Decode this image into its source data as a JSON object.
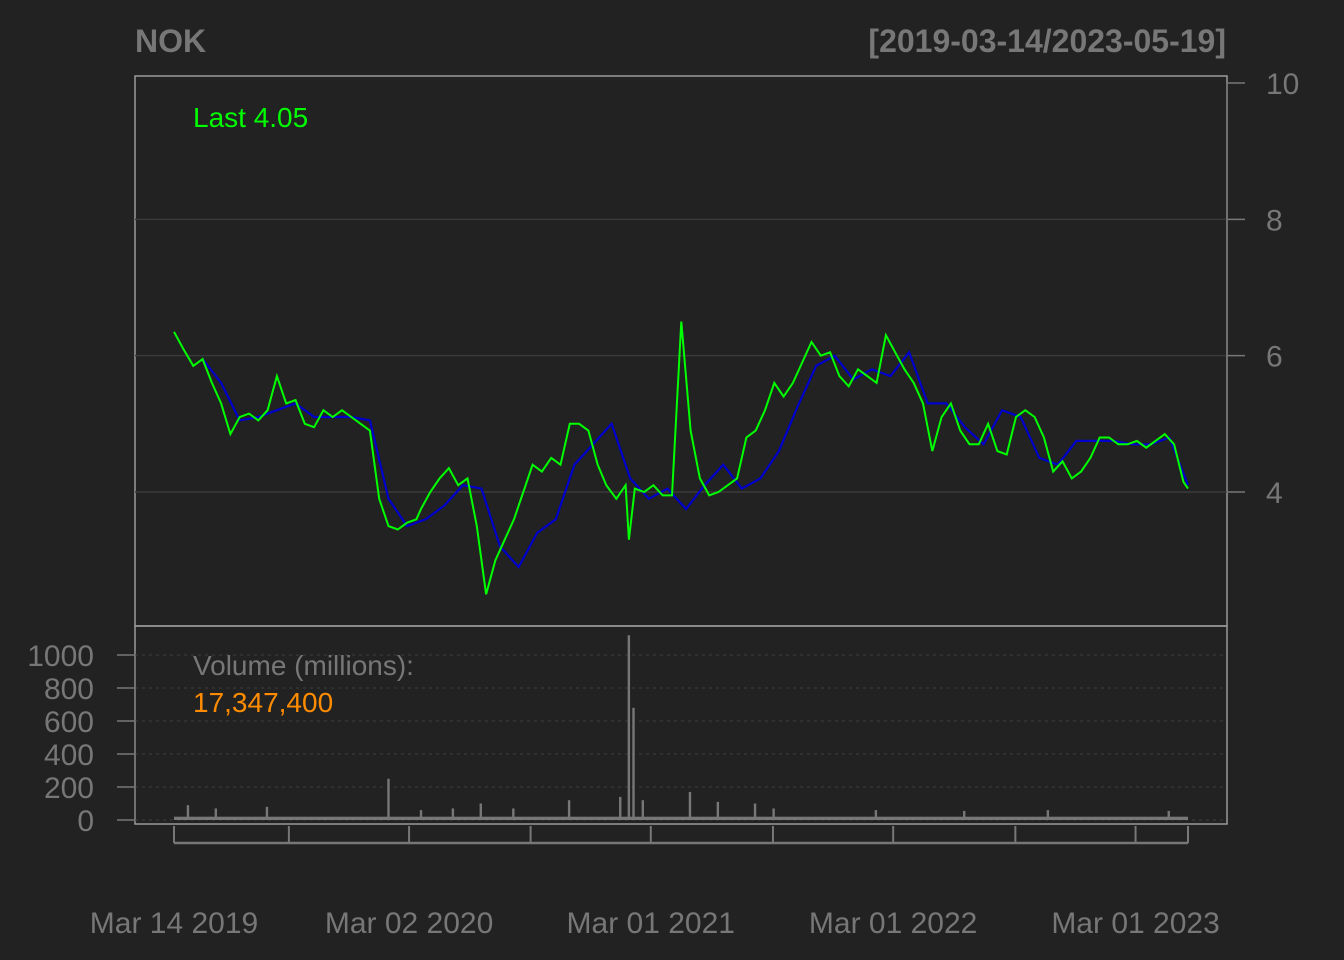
{
  "header": {
    "symbol": "NOK",
    "date_range": "[2019-03-14/2023-05-19]"
  },
  "price_panel": {
    "last_label": "Last 4.05",
    "last_color": "#00ff00"
  },
  "volume_panel": {
    "label": "Volume (millions):",
    "last_value": "17,347,400",
    "value_color": "#ff8c00"
  },
  "colors": {
    "background": "#222222",
    "text": "#777777",
    "frame": "#999999",
    "grid": "#3a3a3a",
    "price_line": "#00ff00",
    "moving_average": "#0000cc",
    "volume_bars": "#777777"
  },
  "chart_data": [
    {
      "type": "line",
      "title": "NOK",
      "subtitle": "[2019-03-14/2023-05-19]",
      "ylim": [
        2,
        10
      ],
      "yticks": [
        4,
        6,
        8,
        10
      ],
      "grid": true,
      "series": [
        {
          "values_key": "price",
          "x": [
            "2019-03-14",
            "2019-03-28",
            "2019-04-12",
            "2019-04-26",
            "2019-05-10",
            "2019-05-24",
            "2019-06-07",
            "2019-06-21",
            "2019-07-05",
            "2019-07-19",
            "2019-08-02",
            "2019-08-16",
            "2019-08-30",
            "2019-09-13",
            "2019-09-27",
            "2019-10-11",
            "2019-10-25",
            "2019-11-08",
            "2019-11-22",
            "2019-12-06",
            "2019-12-20",
            "2020-01-03",
            "2020-01-17",
            "2020-01-31",
            "2020-02-14",
            "2020-02-28",
            "2020-03-13",
            "2020-03-20",
            "2020-04-03",
            "2020-04-17",
            "2020-05-01",
            "2020-05-15",
            "2020-05-29",
            "2020-06-12",
            "2020-06-26",
            "2020-07-10",
            "2020-07-24",
            "2020-08-07",
            "2020-08-21",
            "2020-09-04",
            "2020-09-18",
            "2020-10-02",
            "2020-10-16",
            "2020-10-30",
            "2020-11-13",
            "2020-11-27",
            "2020-12-11",
            "2020-12-24",
            "2021-01-08",
            "2021-01-22",
            "2021-01-27",
            "2021-02-05",
            "2021-02-19",
            "2021-03-05",
            "2021-03-19",
            "2021-04-02",
            "2021-04-16",
            "2021-04-30",
            "2021-05-14",
            "2021-05-28",
            "2021-06-11",
            "2021-06-25",
            "2021-07-09",
            "2021-07-23",
            "2021-08-06",
            "2021-08-20",
            "2021-09-03",
            "2021-09-17",
            "2021-10-01",
            "2021-10-15",
            "2021-10-29",
            "2021-11-12",
            "2021-11-26",
            "2021-12-10",
            "2021-12-24",
            "2022-01-07",
            "2022-01-21",
            "2022-02-04",
            "2022-02-18",
            "2022-03-04",
            "2022-03-18",
            "2022-04-01",
            "2022-04-15",
            "2022-04-29",
            "2022-05-13",
            "2022-05-27",
            "2022-06-10",
            "2022-06-24",
            "2022-07-08",
            "2022-07-22",
            "2022-08-05",
            "2022-08-19",
            "2022-09-02",
            "2022-09-16",
            "2022-09-30",
            "2022-10-14",
            "2022-10-28",
            "2022-11-11",
            "2022-11-25",
            "2022-12-09",
            "2022-12-23",
            "2023-01-06",
            "2023-01-20",
            "2023-02-03",
            "2023-02-17",
            "2023-03-03",
            "2023-03-17",
            "2023-03-31",
            "2023-04-14",
            "2023-04-28",
            "2023-05-12",
            "2023-05-19"
          ],
          "values": [
            6.35,
            6.1,
            5.85,
            5.95,
            5.6,
            5.3,
            4.85,
            5.1,
            5.15,
            5.05,
            5.2,
            5.7,
            5.3,
            5.35,
            5.0,
            4.95,
            5.2,
            5.1,
            5.2,
            5.1,
            5.0,
            4.9,
            3.9,
            3.5,
            3.45,
            3.55,
            3.6,
            3.75,
            4.0,
            4.2,
            4.35,
            4.1,
            4.2,
            3.5,
            2.5,
            3.0,
            3.3,
            3.6,
            4.0,
            4.4,
            4.3,
            4.5,
            4.4,
            5.0,
            5.0,
            4.9,
            4.4,
            4.1,
            3.9,
            4.1,
            3.3,
            4.05,
            4.0,
            4.1,
            3.95,
            3.95,
            6.5,
            4.9,
            4.2,
            3.95,
            4.0,
            4.1,
            4.2,
            4.8,
            4.9,
            5.2,
            5.6,
            5.4,
            5.6,
            5.9,
            6.2,
            6.0,
            6.05,
            5.7,
            5.55,
            5.8,
            5.7,
            5.6,
            6.3,
            6.05,
            5.8,
            5.6,
            5.3,
            4.6,
            5.1,
            5.3,
            4.9,
            4.7,
            4.7,
            5.0,
            4.6,
            4.55,
            5.1,
            5.2,
            5.1,
            4.8,
            4.3,
            4.45,
            4.2,
            4.3,
            4.5,
            4.8,
            4.8,
            4.7,
            4.7,
            4.75,
            4.65,
            4.75,
            4.85,
            4.7,
            4.15,
            4.05
          ]
        },
        {
          "values_key": "moving_average",
          "x": [
            "2019-04-26",
            "2019-05-24",
            "2019-06-21",
            "2019-07-19",
            "2019-08-16",
            "2019-09-13",
            "2019-10-11",
            "2019-11-08",
            "2019-12-06",
            "2020-01-03",
            "2020-01-31",
            "2020-02-28",
            "2020-03-27",
            "2020-04-24",
            "2020-05-22",
            "2020-06-19",
            "2020-07-17",
            "2020-08-14",
            "2020-09-11",
            "2020-10-09",
            "2020-11-06",
            "2020-12-04",
            "2021-01-01",
            "2021-01-29",
            "2021-02-26",
            "2021-03-26",
            "2021-04-23",
            "2021-05-21",
            "2021-06-18",
            "2021-07-16",
            "2021-08-13",
            "2021-09-10",
            "2021-10-08",
            "2021-11-05",
            "2021-12-03",
            "2021-12-31",
            "2022-01-28",
            "2022-02-25",
            "2022-03-25",
            "2022-04-22",
            "2022-05-20",
            "2022-06-17",
            "2022-07-15",
            "2022-08-12",
            "2022-09-09",
            "2022-10-07",
            "2022-11-04",
            "2022-12-02",
            "2022-12-30",
            "2023-01-27",
            "2023-02-24",
            "2023-03-24",
            "2023-04-21",
            "2023-05-19"
          ],
          "values": [
            5.95,
            5.6,
            5.05,
            5.1,
            5.2,
            5.3,
            5.1,
            5.1,
            5.1,
            5.05,
            3.9,
            3.5,
            3.6,
            3.8,
            4.1,
            4.05,
            3.2,
            2.9,
            3.4,
            3.6,
            4.4,
            4.7,
            5.0,
            4.2,
            3.9,
            4.05,
            3.75,
            4.1,
            4.4,
            4.05,
            4.2,
            4.6,
            5.25,
            5.85,
            6.0,
            5.65,
            5.8,
            5.7,
            6.05,
            5.3,
            5.3,
            4.95,
            4.7,
            5.2,
            5.1,
            4.5,
            4.4,
            4.75,
            4.75,
            4.75,
            4.7,
            4.7,
            4.8,
            4.1
          ]
        }
      ]
    },
    {
      "type": "bar",
      "title": "Volume (millions):",
      "ylim": [
        0,
        1100
      ],
      "yticks": [
        0,
        200,
        400,
        600,
        800,
        1000
      ],
      "xticklabels": [
        "Mar 14 2019",
        "Mar 02 2020",
        "Mar 01 2021",
        "Mar 01 2022",
        "Mar 01 2023"
      ],
      "spikes": [
        {
          "x": "2019-04-04",
          "value": 90
        },
        {
          "x": "2019-05-16",
          "value": 70
        },
        {
          "x": "2019-08-01",
          "value": 80
        },
        {
          "x": "2020-01-31",
          "value": 250
        },
        {
          "x": "2020-03-20",
          "value": 60
        },
        {
          "x": "2020-05-07",
          "value": 70
        },
        {
          "x": "2020-06-18",
          "value": 100
        },
        {
          "x": "2020-08-06",
          "value": 70
        },
        {
          "x": "2020-10-29",
          "value": 120
        },
        {
          "x": "2021-01-14",
          "value": 140
        },
        {
          "x": "2021-01-27",
          "value": 1120
        },
        {
          "x": "2021-02-03",
          "value": 680
        },
        {
          "x": "2021-02-17",
          "value": 120
        },
        {
          "x": "2021-04-29",
          "value": 170
        },
        {
          "x": "2021-06-10",
          "value": 110
        },
        {
          "x": "2021-08-05",
          "value": 100
        },
        {
          "x": "2021-09-02",
          "value": 70
        },
        {
          "x": "2022-02-03",
          "value": 60
        },
        {
          "x": "2022-06-16",
          "value": 55
        },
        {
          "x": "2022-10-20",
          "value": 60
        },
        {
          "x": "2023-04-20",
          "value": 55
        }
      ],
      "baseline": 20
    }
  ]
}
